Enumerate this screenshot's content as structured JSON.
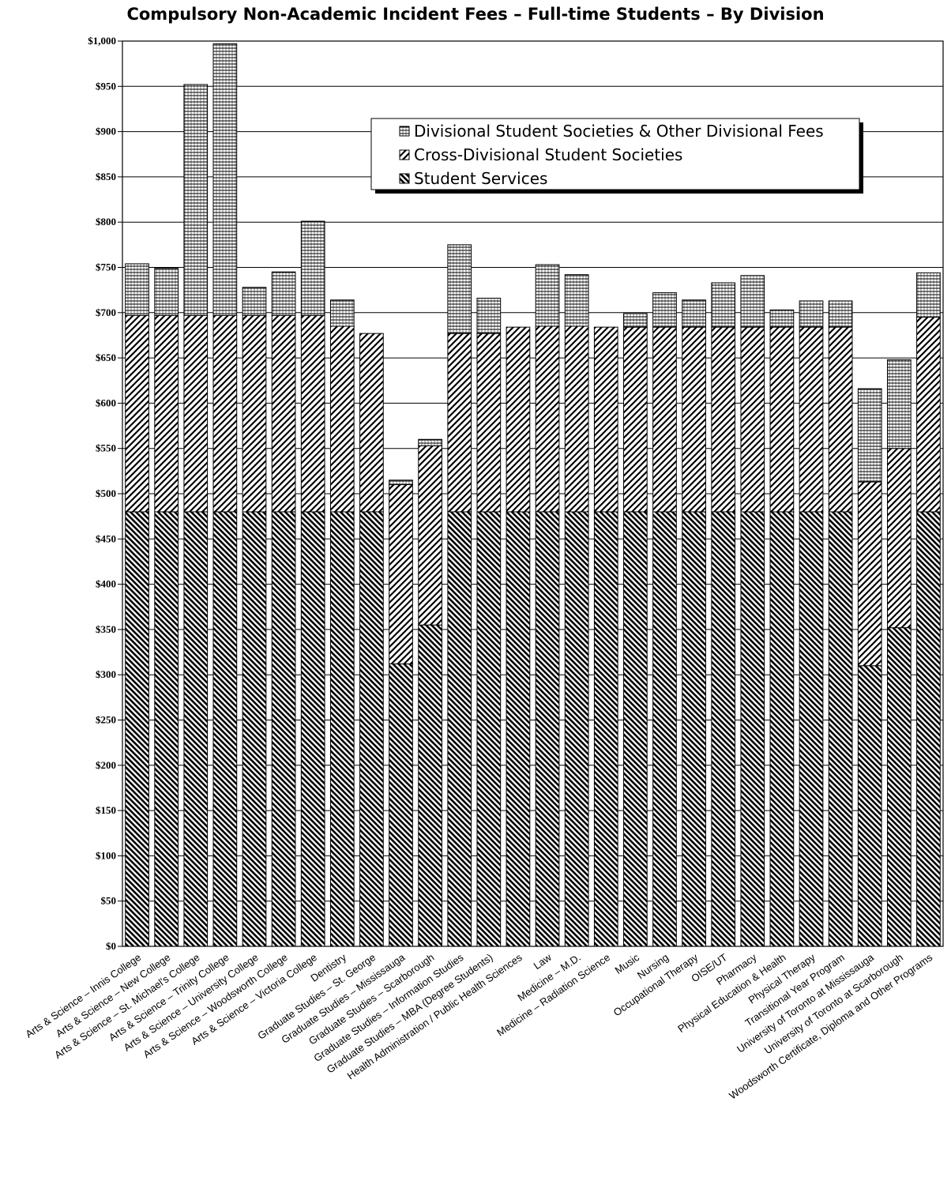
{
  "chart_data": {
    "type": "bar",
    "stacked": true,
    "title": "Compulsory Non-Academic Incident Fees – Full-time Students – By Division",
    "xlabel": "",
    "ylabel": "",
    "ylim": [
      0,
      1000
    ],
    "yticks": [
      "$0",
      "$50",
      "$100",
      "$150",
      "$200",
      "$250",
      "$300",
      "$350",
      "$400",
      "$450",
      "$500",
      "$550",
      "$600",
      "$650",
      "$700",
      "$750",
      "$800",
      "$850",
      "$900",
      "$950",
      "$1,000"
    ],
    "grid": true,
    "legend_position": "top-center",
    "categories": [
      "Arts & Science – Innis College",
      "Arts & Science – New College",
      "Arts & Science – St. Michael's College",
      "Arts & Science – Trinity College",
      "Arts & Science – University College",
      "Arts & Science – Woodsworth College",
      "Arts & Science – Victoria College",
      "Dentistry",
      "Graduate Studies – St. George",
      "Graduate Studies – Mississauga",
      "Graduate Studies – Scarborough",
      "Graduate Studies – Information Studies",
      "Graduate Studies – MBA (Degree Students)",
      "Health Administration / Public Health Sciences",
      "Law",
      "Medicine – M.D.",
      "Medicine – Radiation Science",
      "Music",
      "Nursing",
      "Occupational Therapy",
      "OISE/UT",
      "Pharmacy",
      "Physical Education & Health",
      "Physical Therapy",
      "Transitional Year Program",
      "University of Toronto at Mississauga",
      "University of Toronto at Scarborough",
      "Woodsworth Certificate, Diploma and Other Programs"
    ],
    "series": [
      {
        "name": "Student Services",
        "pattern": "back-diagonal",
        "values": [
          480,
          480,
          480,
          480,
          480,
          480,
          480,
          480,
          480,
          312,
          355,
          480,
          480,
          480,
          480,
          480,
          480,
          480,
          480,
          480,
          480,
          480,
          480,
          480,
          480,
          310,
          352,
          480
        ]
      },
      {
        "name": "Cross-Divisional Student Societies",
        "pattern": "forward-diagonal",
        "values": [
          217,
          217,
          217,
          217,
          217,
          217,
          217,
          205,
          197,
          198,
          198,
          197,
          197,
          204,
          205,
          205,
          204,
          204,
          204,
          204,
          204,
          204,
          204,
          204,
          204,
          203,
          198,
          215
        ]
      },
      {
        "name": "Divisional Student Societies & Other Divisional Fees",
        "pattern": "horizontal",
        "values": [
          57,
          52,
          255,
          300,
          31,
          48,
          104,
          29,
          0,
          5,
          7,
          98,
          39,
          0,
          68,
          57,
          0,
          15,
          38,
          30,
          49,
          57,
          19,
          29,
          29,
          103,
          98,
          49
        ]
      }
    ],
    "legend_order": [
      "Divisional Student Societies & Other Divisional Fees",
      "Cross-Divisional Student Societies",
      "Student Services"
    ]
  }
}
